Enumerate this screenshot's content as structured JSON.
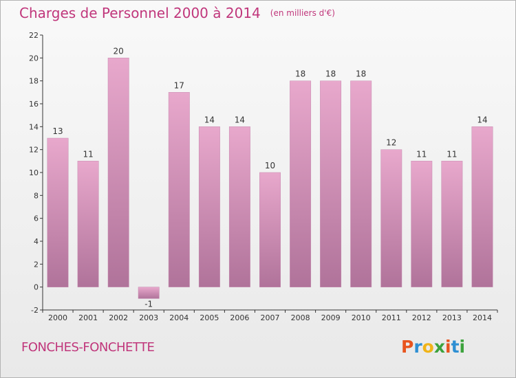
{
  "header": {
    "title": "Charges de Personnel 2000 à 2014",
    "subtitle": "(en milliers d'€)"
  },
  "footer": {
    "commune": "FONCHES-FONCHETTE",
    "brand": {
      "letters": [
        "P",
        "r",
        "o",
        "x",
        "i",
        "t",
        "i"
      ],
      "colors": [
        "#e8541e",
        "#2e8fd3",
        "#f0b418",
        "#3ca23c",
        "#e8541e",
        "#2e8fd3",
        "#3ca23c"
      ]
    }
  },
  "colors": {
    "bar_top": "#e8a8cc",
    "bar_bottom": "#b0739a",
    "bar_edge": "#c58ab0",
    "title": "#c0367b"
  },
  "chart_data": {
    "type": "bar",
    "categories": [
      "2000",
      "2001",
      "2002",
      "2003",
      "2004",
      "2005",
      "2006",
      "2007",
      "2008",
      "2009",
      "2010",
      "2011",
      "2012",
      "2013",
      "2014"
    ],
    "values": [
      13,
      11,
      20,
      -1,
      17,
      14,
      14,
      10,
      18,
      18,
      18,
      12,
      11,
      11,
      14
    ],
    "data_labels": [
      "13",
      "11",
      "20",
      "-1",
      "17",
      "14",
      "14",
      "10",
      "18",
      "18",
      "18",
      "12",
      "11",
      "11",
      "14"
    ],
    "title": "Charges de Personnel 2000 à 2014",
    "xlabel": "",
    "ylabel": "",
    "ylim": [
      -2,
      22
    ],
    "yticks": [
      -2,
      0,
      2,
      4,
      6,
      8,
      10,
      12,
      14,
      16,
      18,
      20,
      22
    ],
    "grid": false
  }
}
